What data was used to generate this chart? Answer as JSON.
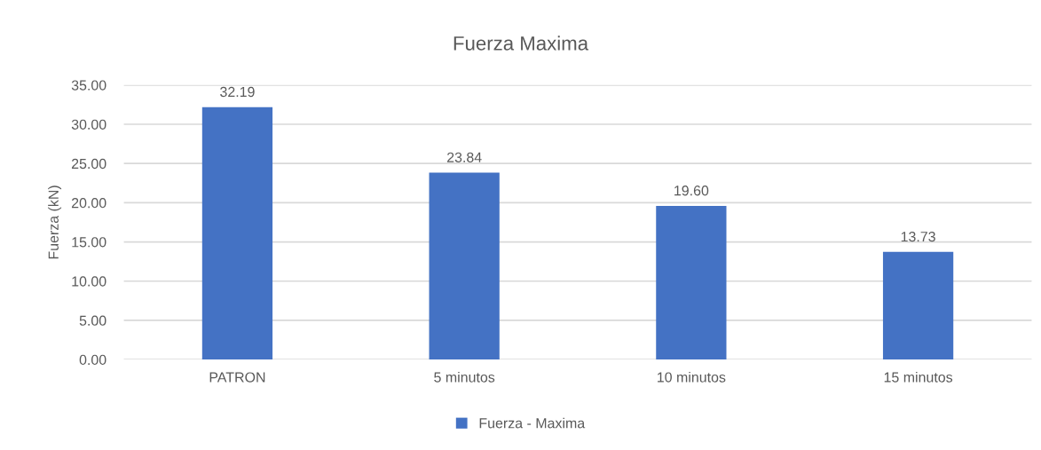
{
  "chart_data": {
    "type": "bar",
    "title": "Fuerza Maxima",
    "ylabel": "Fuerza (kN)",
    "categories": [
      "PATRON",
      "5 minutos",
      "10 minutos",
      "15 minutos"
    ],
    "series": [
      {
        "name": "Fuerza - Maxima",
        "color": "#4472c4",
        "values": [
          32.19,
          23.84,
          19.6,
          13.73
        ],
        "value_labels": [
          "32.19",
          "23.84",
          "19.60",
          "13.73"
        ]
      }
    ],
    "ylim": [
      0,
      35
    ],
    "yticks": [
      {
        "value": 0,
        "label": "0.00"
      },
      {
        "value": 5,
        "label": "5.00"
      },
      {
        "value": 10,
        "label": "10.00"
      },
      {
        "value": 15,
        "label": "15.00"
      },
      {
        "value": 20,
        "label": "20.00"
      },
      {
        "value": 25,
        "label": "25.00"
      },
      {
        "value": 30,
        "label": "30.00"
      },
      {
        "value": 35,
        "label": "35.00"
      }
    ],
    "grid": "y",
    "legend": "bottom"
  }
}
